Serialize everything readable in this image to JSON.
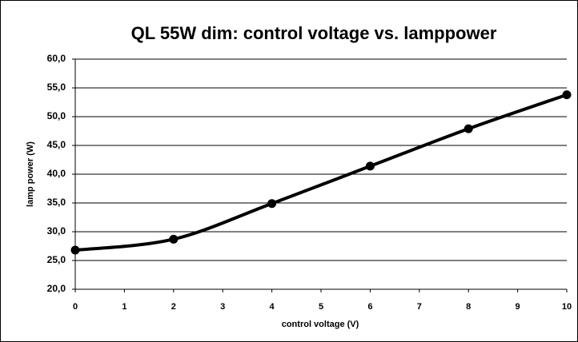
{
  "chart_data": {
    "type": "line",
    "title": "QL 55W dim: control voltage vs. lamppower",
    "x_label": "control voltage (V)",
    "y_label": "lamp power  (W)",
    "x": [
      0,
      2,
      4,
      6,
      8,
      10
    ],
    "series": [
      {
        "name": "lamp power",
        "color": "#000000",
        "values": [
          26.8,
          28.7,
          34.9,
          41.4,
          47.9,
          53.8
        ]
      }
    ],
    "xlim": [
      0,
      10
    ],
    "xticks": [
      0,
      1,
      2,
      3,
      4,
      5,
      6,
      7,
      8,
      9,
      10
    ],
    "ylim": [
      20,
      60
    ],
    "yticks": [
      {
        "value": 20,
        "label": "20,0"
      },
      {
        "value": 25,
        "label": "25,0"
      },
      {
        "value": 30,
        "label": "30,0"
      },
      {
        "value": 35,
        "label": "35,0"
      },
      {
        "value": 40,
        "label": "40,0"
      },
      {
        "value": 45,
        "label": "45,0"
      },
      {
        "value": 50,
        "label": "50,0"
      },
      {
        "value": 55,
        "label": "55,0"
      },
      {
        "value": 60,
        "label": "60,0"
      }
    ],
    "grid": true
  }
}
